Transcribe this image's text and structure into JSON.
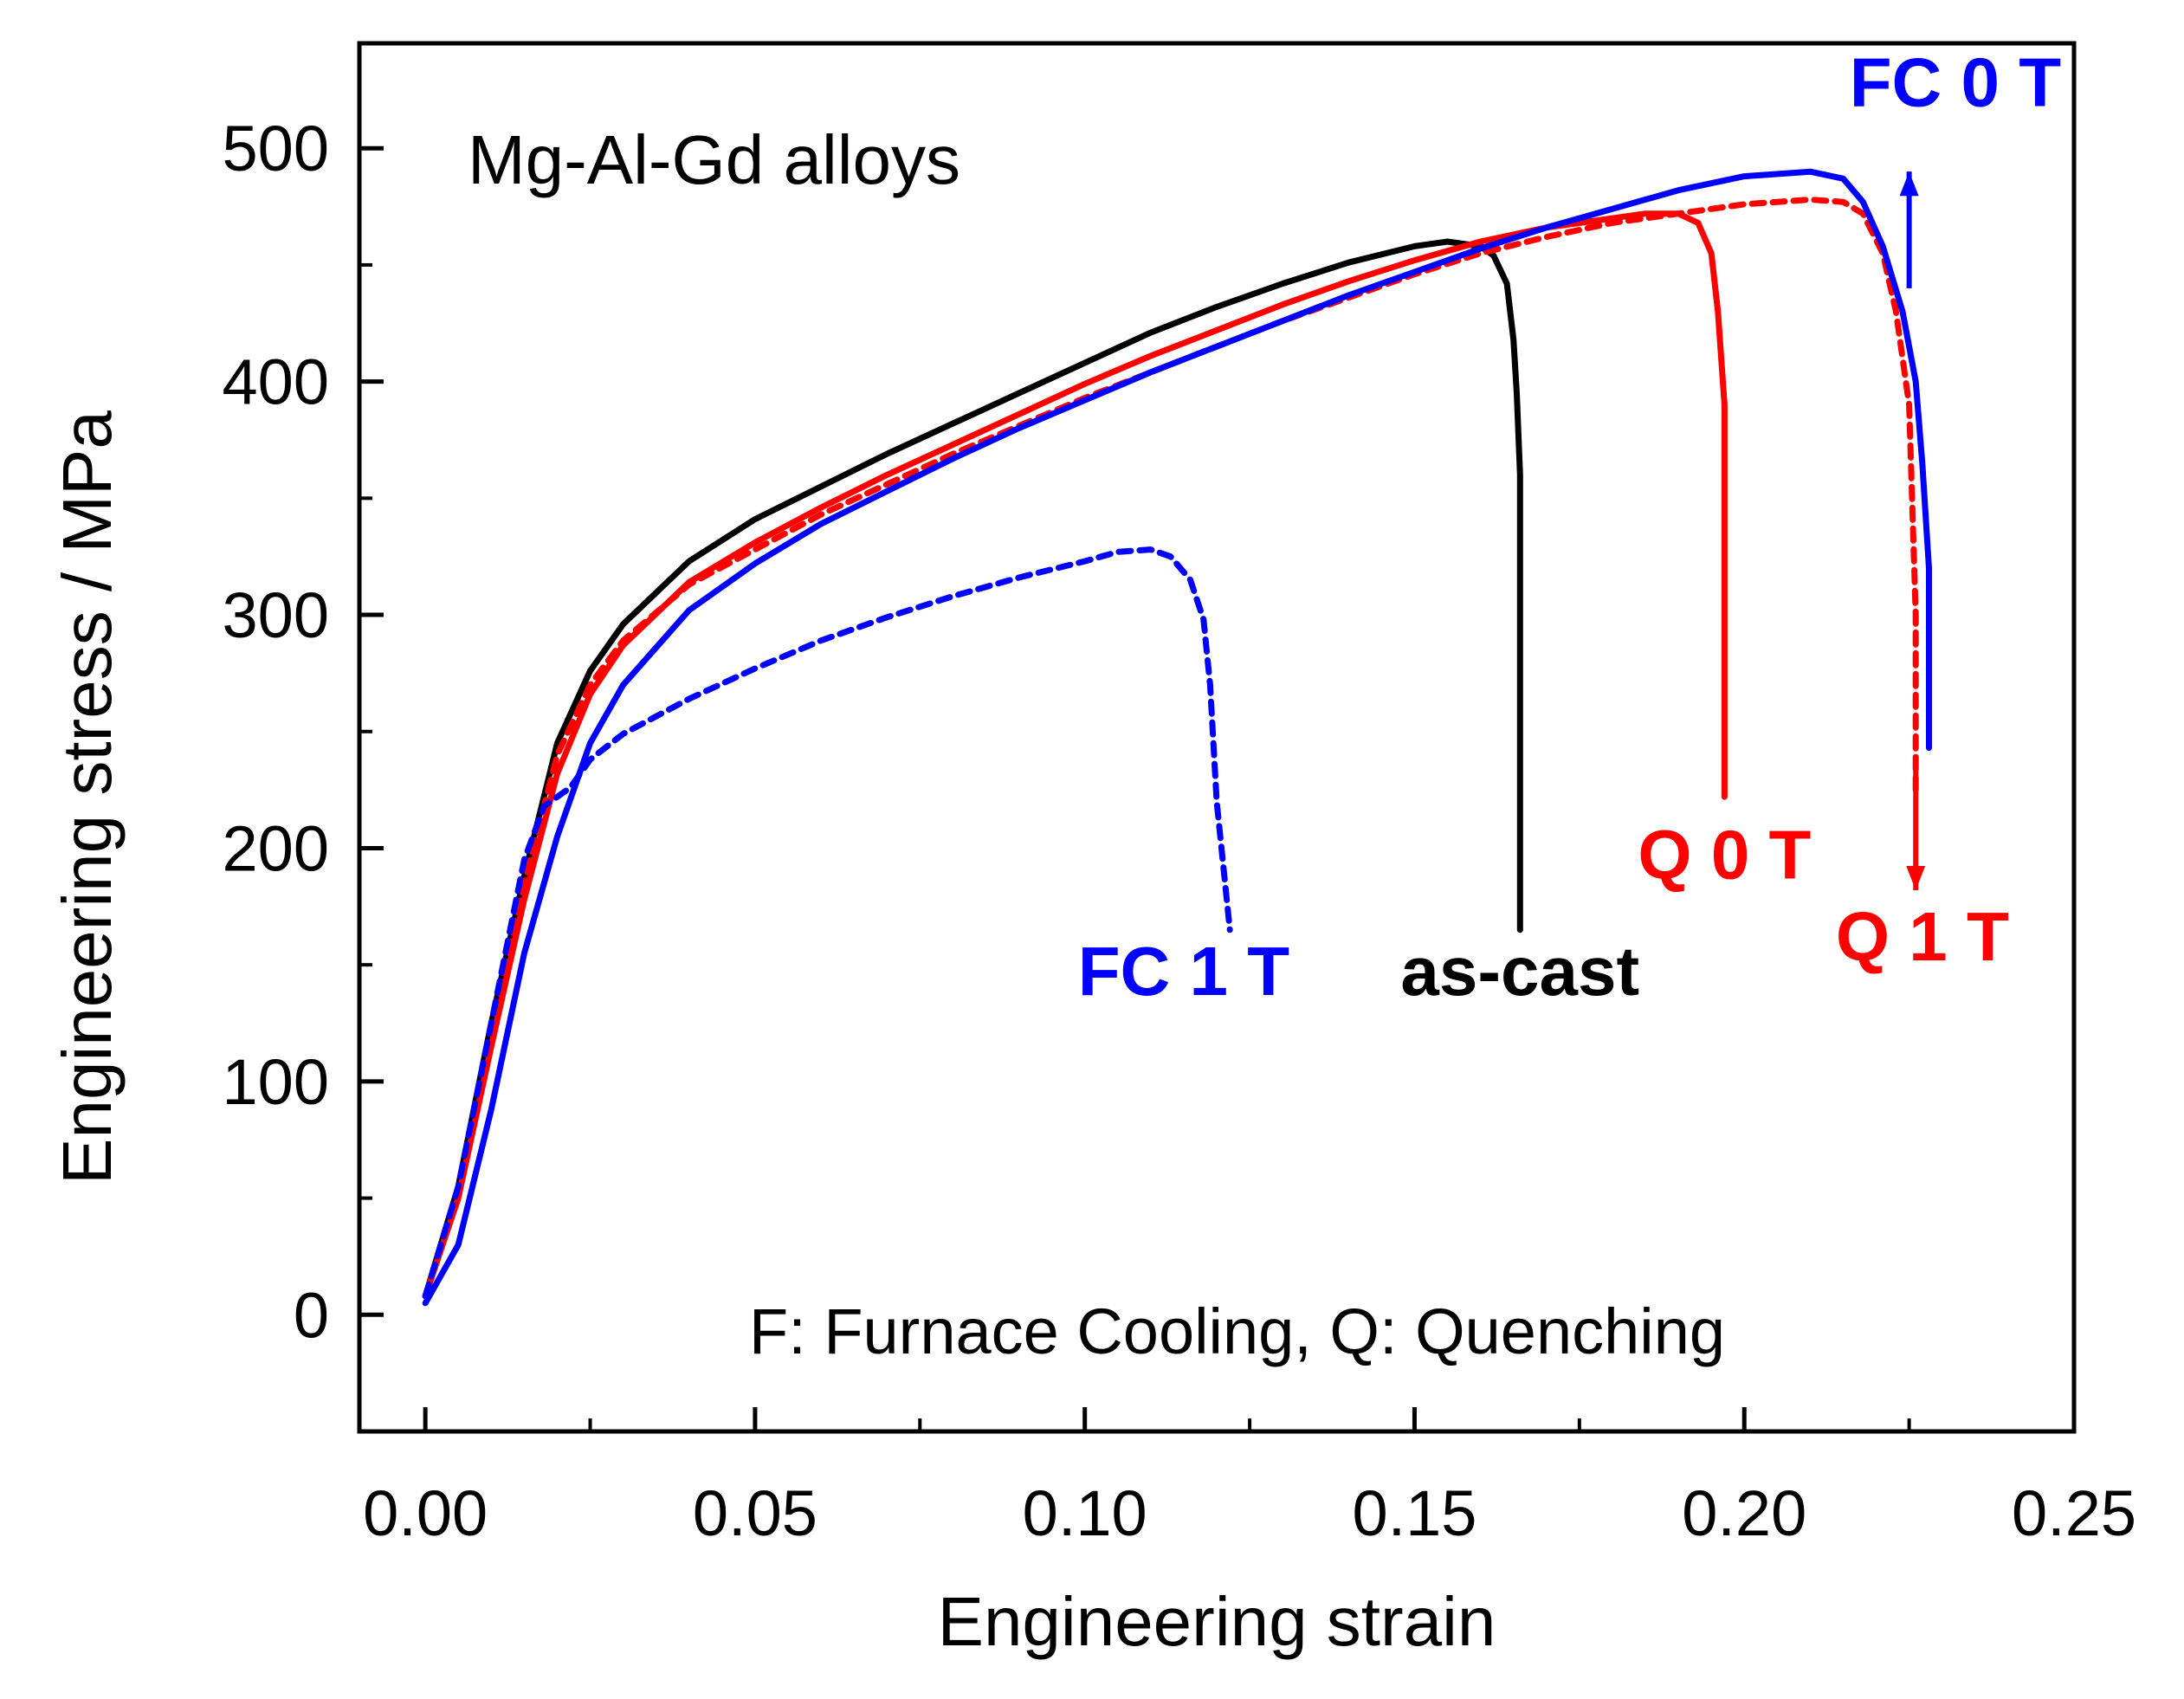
{
  "chart_data": {
    "type": "line",
    "title": "Mg-Al-Gd alloys",
    "xlabel": "Engineering strain",
    "ylabel": "Engineering stress / MPa",
    "xlim": [
      -0.01,
      0.25
    ],
    "ylim": [
      -50,
      545
    ],
    "xticks": [
      {
        "value": 0.0,
        "label": "0.00"
      },
      {
        "value": 0.05,
        "label": "0.05"
      },
      {
        "value": 0.1,
        "label": "0.10"
      },
      {
        "value": 0.15,
        "label": "0.15"
      },
      {
        "value": 0.2,
        "label": "0.20"
      },
      {
        "value": 0.25,
        "label": "0.25"
      }
    ],
    "yticks": [
      {
        "value": 0,
        "label": "0"
      },
      {
        "value": 100,
        "label": "100"
      },
      {
        "value": 200,
        "label": "200"
      },
      {
        "value": 300,
        "label": "300"
      },
      {
        "value": 400,
        "label": "400"
      },
      {
        "value": 500,
        "label": "500"
      }
    ],
    "x_minor_ticks": [
      0.025,
      0.075,
      0.125,
      0.175,
      0.225
    ],
    "y_minor_ticks": [
      -50,
      50,
      150,
      250,
      350,
      450,
      550
    ],
    "annotation": "F: Furnace Cooling, Q: Quenching",
    "series": [
      {
        "name": "as-cast",
        "color": "#000000",
        "dashed": false,
        "label_pos": [
          0.166,
          137
        ],
        "points": [
          [
            0.0,
            8
          ],
          [
            0.005,
            55
          ],
          [
            0.01,
            125
          ],
          [
            0.015,
            188
          ],
          [
            0.02,
            245
          ],
          [
            0.025,
            276
          ],
          [
            0.03,
            296
          ],
          [
            0.04,
            323
          ],
          [
            0.05,
            341
          ],
          [
            0.06,
            355
          ],
          [
            0.07,
            369
          ],
          [
            0.08,
            382
          ],
          [
            0.09,
            395
          ],
          [
            0.1,
            408
          ],
          [
            0.11,
            421
          ],
          [
            0.12,
            432
          ],
          [
            0.13,
            442
          ],
          [
            0.14,
            451
          ],
          [
            0.15,
            458
          ],
          [
            0.155,
            460
          ],
          [
            0.16,
            458
          ],
          [
            0.162,
            454
          ],
          [
            0.164,
            442
          ],
          [
            0.165,
            418
          ],
          [
            0.1655,
            395
          ],
          [
            0.166,
            360
          ],
          [
            0.166,
            165
          ]
        ]
      },
      {
        "name": "Q 0 T",
        "color": "#ff0000",
        "dashed": false,
        "label_pos": [
          0.197,
          187
        ],
        "points": [
          [
            0.0,
            8
          ],
          [
            0.005,
            50
          ],
          [
            0.01,
            115
          ],
          [
            0.015,
            178
          ],
          [
            0.02,
            232
          ],
          [
            0.025,
            266
          ],
          [
            0.03,
            287
          ],
          [
            0.04,
            314
          ],
          [
            0.05,
            331
          ],
          [
            0.06,
            346
          ],
          [
            0.07,
            360
          ],
          [
            0.08,
            373
          ],
          [
            0.09,
            386
          ],
          [
            0.1,
            399
          ],
          [
            0.11,
            411
          ],
          [
            0.12,
            422
          ],
          [
            0.13,
            433
          ],
          [
            0.14,
            443
          ],
          [
            0.15,
            452
          ],
          [
            0.16,
            460
          ],
          [
            0.17,
            466
          ],
          [
            0.18,
            470
          ],
          [
            0.185,
            472
          ],
          [
            0.19,
            472
          ],
          [
            0.193,
            468
          ],
          [
            0.195,
            455
          ],
          [
            0.196,
            430
          ],
          [
            0.197,
            390
          ],
          [
            0.197,
            222
          ]
        ]
      },
      {
        "name": "Q 1 T",
        "color": "#ff0000",
        "dashed": true,
        "label_pos": [
          0.227,
          152
        ],
        "points": [
          [
            0.0,
            8
          ],
          [
            0.005,
            52
          ],
          [
            0.01,
            120
          ],
          [
            0.015,
            185
          ],
          [
            0.02,
            240
          ],
          [
            0.025,
            270
          ],
          [
            0.03,
            289
          ],
          [
            0.04,
            313
          ],
          [
            0.05,
            328
          ],
          [
            0.06,
            343
          ],
          [
            0.07,
            356
          ],
          [
            0.08,
            369
          ],
          [
            0.09,
            381
          ],
          [
            0.1,
            393
          ],
          [
            0.11,
            404
          ],
          [
            0.12,
            415
          ],
          [
            0.13,
            426
          ],
          [
            0.14,
            436
          ],
          [
            0.15,
            446
          ],
          [
            0.16,
            455
          ],
          [
            0.17,
            462
          ],
          [
            0.18,
            468
          ],
          [
            0.19,
            472
          ],
          [
            0.2,
            476
          ],
          [
            0.21,
            478
          ],
          [
            0.215,
            477
          ],
          [
            0.218,
            472
          ],
          [
            0.221,
            455
          ],
          [
            0.223,
            430
          ],
          [
            0.225,
            390
          ],
          [
            0.226,
            300
          ],
          [
            0.226,
            225
          ]
        ]
      },
      {
        "name": "FC 0 T",
        "color": "#0000ff",
        "dashed": false,
        "label_pos": [
          0.232,
          518
        ],
        "points": [
          [
            0.0,
            5
          ],
          [
            0.005,
            30
          ],
          [
            0.01,
            88
          ],
          [
            0.015,
            155
          ],
          [
            0.02,
            205
          ],
          [
            0.025,
            245
          ],
          [
            0.03,
            270
          ],
          [
            0.04,
            302
          ],
          [
            0.05,
            322
          ],
          [
            0.06,
            339
          ],
          [
            0.07,
            353
          ],
          [
            0.08,
            367
          ],
          [
            0.09,
            380
          ],
          [
            0.1,
            392
          ],
          [
            0.11,
            404
          ],
          [
            0.12,
            415
          ],
          [
            0.13,
            426
          ],
          [
            0.14,
            437
          ],
          [
            0.15,
            447
          ],
          [
            0.16,
            457
          ],
          [
            0.17,
            466
          ],
          [
            0.18,
            474
          ],
          [
            0.19,
            482
          ],
          [
            0.2,
            488
          ],
          [
            0.21,
            490
          ],
          [
            0.215,
            487
          ],
          [
            0.218,
            477
          ],
          [
            0.221,
            458
          ],
          [
            0.224,
            430
          ],
          [
            0.226,
            400
          ],
          [
            0.227,
            365
          ],
          [
            0.228,
            320
          ],
          [
            0.228,
            243
          ]
        ]
      },
      {
        "name": "FC 1 T",
        "color": "#0000ff",
        "dashed": true,
        "label_pos": [
          0.115,
          137
        ],
        "points": [
          [
            0.0,
            8
          ],
          [
            0.005,
            55
          ],
          [
            0.01,
            125
          ],
          [
            0.015,
            195
          ],
          [
            0.018,
            218
          ],
          [
            0.022,
            226
          ],
          [
            0.025,
            238
          ],
          [
            0.03,
            249
          ],
          [
            0.04,
            264
          ],
          [
            0.05,
            277
          ],
          [
            0.06,
            289
          ],
          [
            0.07,
            299
          ],
          [
            0.08,
            308
          ],
          [
            0.09,
            316
          ],
          [
            0.1,
            323
          ],
          [
            0.105,
            327
          ],
          [
            0.11,
            328
          ],
          [
            0.113,
            325
          ],
          [
            0.116,
            315
          ],
          [
            0.118,
            298
          ],
          [
            0.119,
            270
          ],
          [
            0.12,
            220
          ],
          [
            0.122,
            165
          ]
        ]
      }
    ],
    "arrows": [
      {
        "series": "FC 0 T",
        "color": "#0000ff",
        "from": [
          0.225,
          440
        ],
        "to": [
          0.225,
          490
        ]
      },
      {
        "series": "Q 1 T",
        "color": "#ff0000",
        "from": [
          0.226,
          240
        ],
        "to": [
          0.226,
          182
        ]
      }
    ]
  }
}
